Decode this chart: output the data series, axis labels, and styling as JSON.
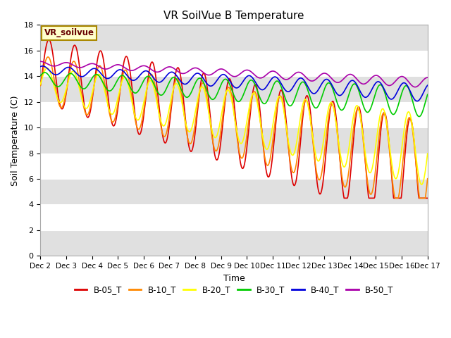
{
  "title": "VR SoilVue B Temperature",
  "ylabel": "Soil Temperature (C)",
  "xlabel": "Time",
  "legend_label": "VR_soilvue",
  "ylim": [
    0,
    18
  ],
  "yticks": [
    0,
    2,
    4,
    6,
    8,
    10,
    12,
    14,
    16,
    18
  ],
  "xtick_labels": [
    "Dec 2",
    "Dec 3",
    "Dec 4",
    "Dec 5",
    "Dec 6",
    "Dec 7",
    "Dec 8",
    "Dec 9",
    "Dec 10",
    "Dec 11",
    "Dec 12",
    "Dec 13",
    "Dec 14",
    "Dec 15",
    "Dec 16",
    "Dec 17"
  ],
  "bg_color": "#ffffff",
  "plot_bg_color": "#e8e8e8",
  "series_colors": {
    "B-05_T": "#dd0000",
    "B-10_T": "#ff8800",
    "B-20_T": "#ffff00",
    "B-30_T": "#00cc00",
    "B-40_T": "#0000dd",
    "B-50_T": "#aa00aa"
  },
  "legend_entries": [
    {
      "label": "B-05_T",
      "color": "#dd0000"
    },
    {
      "label": "B-10_T",
      "color": "#ff8800"
    },
    {
      "label": "B-20_T",
      "color": "#ffff00"
    },
    {
      "label": "B-30_T",
      "color": "#00cc00"
    },
    {
      "label": "B-40_T",
      "color": "#0000dd"
    },
    {
      "label": "B-50_T",
      "color": "#aa00aa"
    }
  ]
}
